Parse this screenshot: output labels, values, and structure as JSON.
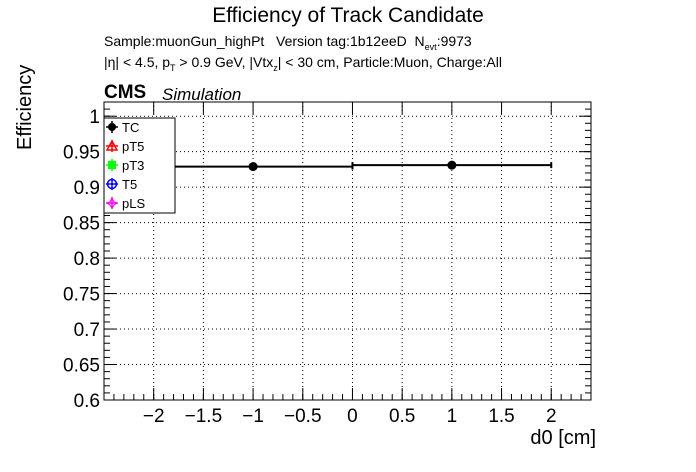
{
  "title": "Efficiency of Track Candidate",
  "subtitle1": {
    "sample": "Sample:muonGun_highPt",
    "version": "Version tag:1b12eeD",
    "n_main": "N",
    "n_sub": "evt",
    "n_val": ":9973"
  },
  "subtitle2": {
    "p1": "|η| < 4.5, p",
    "p1_sub": "T",
    "p2": " > 0.9 GeV, |Vtx",
    "p2_sub": "z",
    "p3": "| < 30 cm, Particle:Muon, Charge:All"
  },
  "cms_label": "CMS",
  "sim_label": "Simulation",
  "colors": {
    "TC": "#000000",
    "pT5": "#ff0000",
    "pT3": "#00ff00",
    "T5": "#0000ff",
    "pLS": "#ff00ff",
    "grid": "#000000"
  },
  "chart_data": {
    "type": "scatter",
    "title": "Efficiency of Track Candidate",
    "xlabel": "d0 [cm]",
    "ylabel": "Efficiency",
    "xlim": [
      -2.5,
      2.4
    ],
    "ylim": [
      0.6,
      1.02
    ],
    "grid": true,
    "legend_position": "top-left",
    "x_ticks": [
      -2,
      -1.5,
      -1,
      -0.5,
      0,
      0.5,
      1,
      1.5,
      2
    ],
    "x_tick_labels": [
      "−2",
      "−1.5",
      "−1",
      "−0.5",
      "0",
      "0.5",
      "1",
      "1.5",
      "2"
    ],
    "y_ticks": [
      0.6,
      0.65,
      0.7,
      0.75,
      0.8,
      0.85,
      0.9,
      0.95,
      1
    ],
    "y_tick_labels": [
      "0.6",
      "0.65",
      "0.7",
      "0.75",
      "0.8",
      "0.85",
      "0.9",
      "0.95",
      "1"
    ],
    "series": [
      {
        "name": "TC",
        "x": [
          -1,
          1
        ],
        "y": [
          0.929,
          0.931
        ],
        "xerr": [
          1,
          1
        ]
      },
      {
        "name": "pT5",
        "x": [],
        "y": []
      },
      {
        "name": "pT3",
        "x": [],
        "y": []
      },
      {
        "name": "T5",
        "x": [],
        "y": []
      },
      {
        "name": "pLS",
        "x": [],
        "y": []
      }
    ]
  }
}
